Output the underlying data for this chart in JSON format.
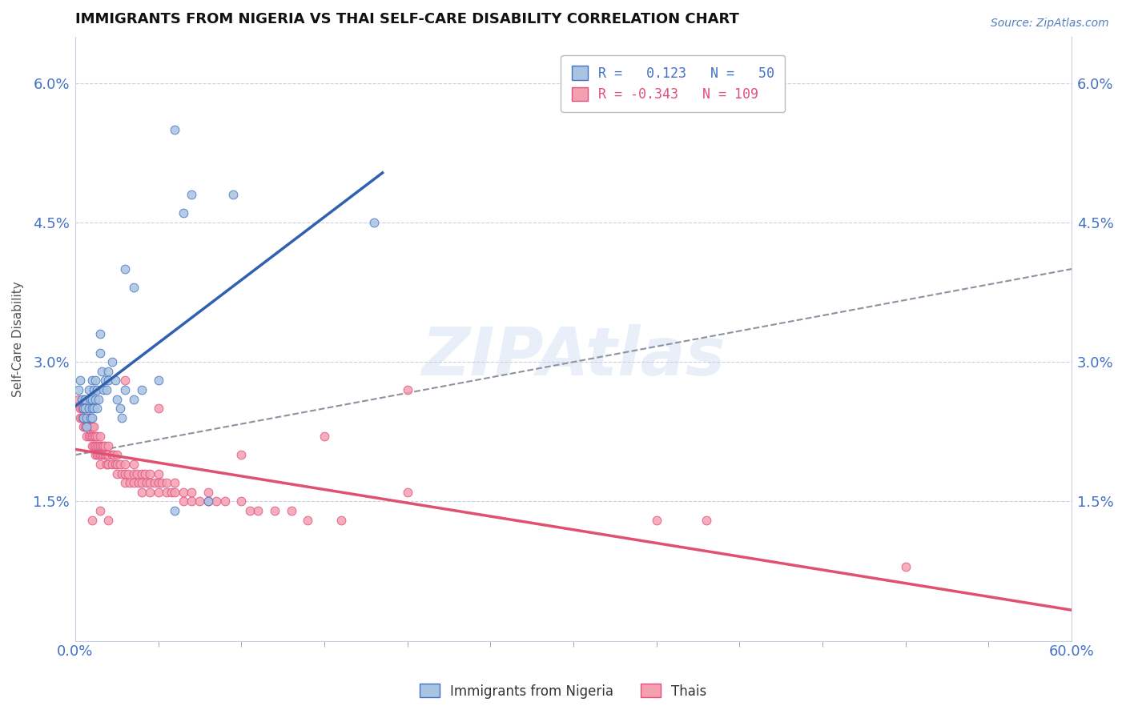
{
  "title": "IMMIGRANTS FROM NIGERIA VS THAI SELF-CARE DISABILITY CORRELATION CHART",
  "source": "Source: ZipAtlas.com",
  "ylabel": "Self-Care Disability",
  "xlim": [
    0.0,
    0.6
  ],
  "ylim": [
    0.0,
    0.065
  ],
  "yticks": [
    0.0,
    0.015,
    0.03,
    0.045,
    0.06
  ],
  "ytick_labels": [
    "",
    "1.5%",
    "3.0%",
    "4.5%",
    "6.0%"
  ],
  "nigeria_color": "#a8c4e0",
  "thai_color": "#f4a0b0",
  "nigeria_edge_color": "#4472c4",
  "thai_edge_color": "#e05080",
  "nigeria_line_color": "#3060b0",
  "thai_line_color": "#e05070",
  "trend_line_color": "#9090a0",
  "watermark": "ZIPAtlas",
  "background_color": "#ffffff",
  "nigeria_points": [
    [
      0.002,
      0.027
    ],
    [
      0.003,
      0.028
    ],
    [
      0.004,
      0.026
    ],
    [
      0.005,
      0.025
    ],
    [
      0.005,
      0.024
    ],
    [
      0.006,
      0.026
    ],
    [
      0.006,
      0.025
    ],
    [
      0.007,
      0.024
    ],
    [
      0.007,
      0.023
    ],
    [
      0.008,
      0.027
    ],
    [
      0.008,
      0.025
    ],
    [
      0.009,
      0.026
    ],
    [
      0.009,
      0.024
    ],
    [
      0.01,
      0.028
    ],
    [
      0.01,
      0.026
    ],
    [
      0.01,
      0.025
    ],
    [
      0.01,
      0.024
    ],
    [
      0.011,
      0.027
    ],
    [
      0.011,
      0.025
    ],
    [
      0.012,
      0.028
    ],
    [
      0.012,
      0.026
    ],
    [
      0.013,
      0.027
    ],
    [
      0.013,
      0.025
    ],
    [
      0.014,
      0.026
    ],
    [
      0.015,
      0.033
    ],
    [
      0.015,
      0.031
    ],
    [
      0.016,
      0.029
    ],
    [
      0.017,
      0.027
    ],
    [
      0.018,
      0.028
    ],
    [
      0.019,
      0.027
    ],
    [
      0.02,
      0.029
    ],
    [
      0.02,
      0.028
    ],
    [
      0.022,
      0.03
    ],
    [
      0.024,
      0.028
    ],
    [
      0.025,
      0.026
    ],
    [
      0.027,
      0.025
    ],
    [
      0.028,
      0.024
    ],
    [
      0.03,
      0.027
    ],
    [
      0.035,
      0.026
    ],
    [
      0.04,
      0.027
    ],
    [
      0.05,
      0.028
    ],
    [
      0.06,
      0.014
    ],
    [
      0.03,
      0.04
    ],
    [
      0.035,
      0.038
    ],
    [
      0.06,
      0.055
    ],
    [
      0.07,
      0.048
    ],
    [
      0.065,
      0.046
    ],
    [
      0.08,
      0.015
    ],
    [
      0.095,
      0.048
    ],
    [
      0.18,
      0.045
    ]
  ],
  "thai_points": [
    [
      0.002,
      0.026
    ],
    [
      0.003,
      0.025
    ],
    [
      0.003,
      0.024
    ],
    [
      0.004,
      0.025
    ],
    [
      0.004,
      0.024
    ],
    [
      0.005,
      0.026
    ],
    [
      0.005,
      0.025
    ],
    [
      0.005,
      0.024
    ],
    [
      0.005,
      0.023
    ],
    [
      0.006,
      0.025
    ],
    [
      0.006,
      0.024
    ],
    [
      0.006,
      0.023
    ],
    [
      0.007,
      0.024
    ],
    [
      0.007,
      0.023
    ],
    [
      0.007,
      0.022
    ],
    [
      0.008,
      0.025
    ],
    [
      0.008,
      0.024
    ],
    [
      0.008,
      0.023
    ],
    [
      0.008,
      0.022
    ],
    [
      0.009,
      0.024
    ],
    [
      0.009,
      0.023
    ],
    [
      0.009,
      0.022
    ],
    [
      0.01,
      0.023
    ],
    [
      0.01,
      0.022
    ],
    [
      0.01,
      0.021
    ],
    [
      0.011,
      0.023
    ],
    [
      0.011,
      0.022
    ],
    [
      0.011,
      0.021
    ],
    [
      0.012,
      0.022
    ],
    [
      0.012,
      0.021
    ],
    [
      0.012,
      0.02
    ],
    [
      0.013,
      0.022
    ],
    [
      0.013,
      0.021
    ],
    [
      0.013,
      0.02
    ],
    [
      0.014,
      0.021
    ],
    [
      0.014,
      0.02
    ],
    [
      0.015,
      0.022
    ],
    [
      0.015,
      0.021
    ],
    [
      0.015,
      0.02
    ],
    [
      0.015,
      0.019
    ],
    [
      0.016,
      0.021
    ],
    [
      0.016,
      0.02
    ],
    [
      0.017,
      0.021
    ],
    [
      0.017,
      0.02
    ],
    [
      0.018,
      0.021
    ],
    [
      0.018,
      0.02
    ],
    [
      0.019,
      0.02
    ],
    [
      0.019,
      0.019
    ],
    [
      0.02,
      0.021
    ],
    [
      0.02,
      0.02
    ],
    [
      0.02,
      0.019
    ],
    [
      0.022,
      0.02
    ],
    [
      0.022,
      0.019
    ],
    [
      0.023,
      0.02
    ],
    [
      0.024,
      0.019
    ],
    [
      0.025,
      0.02
    ],
    [
      0.025,
      0.019
    ],
    [
      0.025,
      0.018
    ],
    [
      0.027,
      0.019
    ],
    [
      0.028,
      0.018
    ],
    [
      0.03,
      0.019
    ],
    [
      0.03,
      0.018
    ],
    [
      0.03,
      0.017
    ],
    [
      0.032,
      0.018
    ],
    [
      0.033,
      0.017
    ],
    [
      0.035,
      0.019
    ],
    [
      0.035,
      0.018
    ],
    [
      0.035,
      0.017
    ],
    [
      0.037,
      0.018
    ],
    [
      0.038,
      0.017
    ],
    [
      0.04,
      0.018
    ],
    [
      0.04,
      0.017
    ],
    [
      0.04,
      0.016
    ],
    [
      0.042,
      0.018
    ],
    [
      0.043,
      0.017
    ],
    [
      0.045,
      0.018
    ],
    [
      0.045,
      0.017
    ],
    [
      0.045,
      0.016
    ],
    [
      0.048,
      0.017
    ],
    [
      0.05,
      0.018
    ],
    [
      0.05,
      0.017
    ],
    [
      0.05,
      0.016
    ],
    [
      0.052,
      0.017
    ],
    [
      0.055,
      0.017
    ],
    [
      0.055,
      0.016
    ],
    [
      0.058,
      0.016
    ],
    [
      0.06,
      0.017
    ],
    [
      0.06,
      0.016
    ],
    [
      0.065,
      0.016
    ],
    [
      0.065,
      0.015
    ],
    [
      0.07,
      0.016
    ],
    [
      0.07,
      0.015
    ],
    [
      0.075,
      0.015
    ],
    [
      0.08,
      0.016
    ],
    [
      0.08,
      0.015
    ],
    [
      0.085,
      0.015
    ],
    [
      0.09,
      0.015
    ],
    [
      0.1,
      0.015
    ],
    [
      0.105,
      0.014
    ],
    [
      0.11,
      0.014
    ],
    [
      0.12,
      0.014
    ],
    [
      0.13,
      0.014
    ],
    [
      0.14,
      0.013
    ],
    [
      0.15,
      0.022
    ],
    [
      0.16,
      0.013
    ],
    [
      0.2,
      0.027
    ],
    [
      0.35,
      0.013
    ],
    [
      0.5,
      0.008
    ],
    [
      0.03,
      0.028
    ],
    [
      0.05,
      0.025
    ],
    [
      0.1,
      0.02
    ],
    [
      0.2,
      0.016
    ],
    [
      0.38,
      0.013
    ],
    [
      0.02,
      0.013
    ],
    [
      0.015,
      0.014
    ],
    [
      0.01,
      0.013
    ]
  ]
}
